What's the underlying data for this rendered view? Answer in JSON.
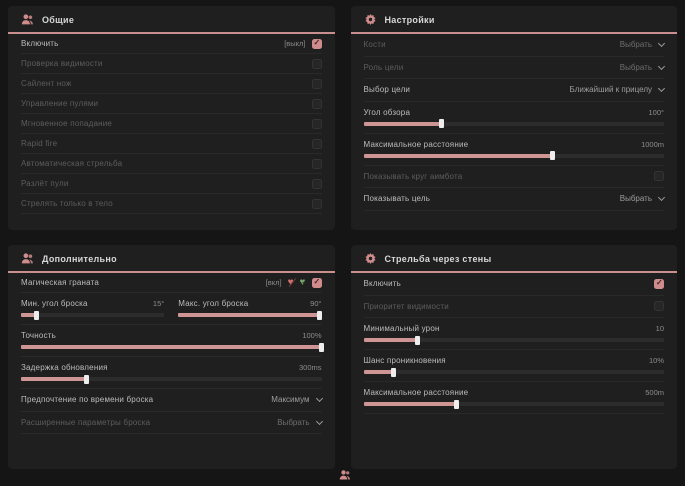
{
  "accent_color": "#d08c8c",
  "icons": {
    "heart_glyph": "♥"
  },
  "panels": {
    "general": {
      "title": "Общие",
      "rows": {
        "enable": {
          "label": "Включить",
          "keybind": "[выкл]",
          "checked": true
        },
        "visibility_check": {
          "label": "Проверка видимости",
          "checked": false
        },
        "silent_knife": {
          "label": "Сайлент нож",
          "checked": false
        },
        "bullet_control": {
          "label": "Управление пулями",
          "checked": false
        },
        "instant_hit": {
          "label": "Мгновенное попадание",
          "checked": false
        },
        "rapid_fire": {
          "label": "Rapid fire",
          "checked": false
        },
        "auto_fire": {
          "label": "Автоматическая стрельба",
          "checked": false
        },
        "bullet_spread": {
          "label": "Разлёт пули",
          "checked": false
        },
        "body_only": {
          "label": "Стрелять только в тело",
          "checked": false
        }
      }
    },
    "settings": {
      "title": "Настройки",
      "rows": {
        "bones": {
          "label": "Кости",
          "value": "Выбрать"
        },
        "target_role": {
          "label": "Роль цели",
          "value": "Выбрать"
        },
        "target_choice": {
          "label": "Выбор цели",
          "value": "Ближайший к прицелу"
        },
        "fov": {
          "label": "Угол обзора",
          "value": "100°",
          "fill": 26
        },
        "max_distance": {
          "label": "Максимальное расстояние",
          "value": "1000m",
          "fill": 63
        },
        "show_aimbot_circle": {
          "label": "Показывать круг аимбота",
          "checked": false
        },
        "show_target": {
          "label": "Показывать цель",
          "value": "Выбрать"
        }
      }
    },
    "additional": {
      "title": "Дополнительно",
      "rows": {
        "magic_grenade": {
          "label": "Магическая граната",
          "keybind": "[вкл]",
          "checked": true
        },
        "min_throw_angle": {
          "label": "Мин. угол броска",
          "value": "15°",
          "fill": 11
        },
        "max_throw_angle": {
          "label": "Макс. угол броска",
          "value": "90°",
          "fill": 99
        },
        "accuracy": {
          "label": "Точность",
          "value": "100%",
          "fill": 100
        },
        "update_delay": {
          "label": "Задержка обновления",
          "value": "300ms",
          "fill": 22
        },
        "throw_time_pref": {
          "label": "Предпочтение по времени броска",
          "value": "Максимум"
        },
        "advanced_throw_params": {
          "label": "Расширенные параметры броска",
          "value": "Выбрать"
        }
      }
    },
    "wallbang": {
      "title": "Стрельба через стены",
      "rows": {
        "enable": {
          "label": "Включить",
          "checked": true
        },
        "visibility_priority": {
          "label": "Приоритет видимости",
          "checked": false
        },
        "min_damage": {
          "label": "Минимальный урон",
          "value": "10",
          "fill": 18
        },
        "penetration_chance": {
          "label": "Шанс проникновения",
          "value": "10%",
          "fill": 10
        },
        "max_distance": {
          "label": "Максимальное расстояние",
          "value": "500m",
          "fill": 31
        }
      }
    }
  }
}
